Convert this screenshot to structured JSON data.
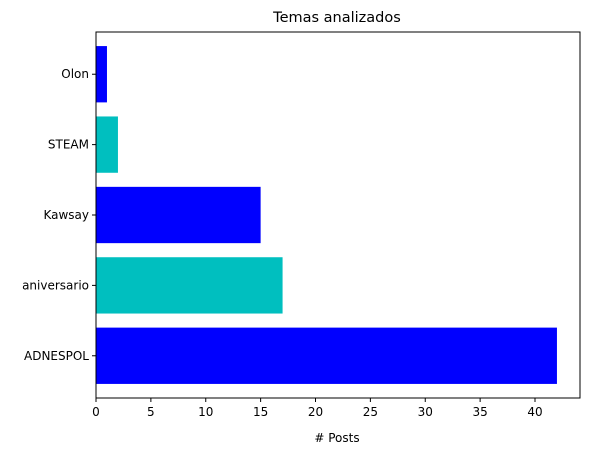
{
  "chart_data": {
    "type": "bar",
    "orientation": "horizontal",
    "title": "Temas analizados",
    "xlabel": "# Posts",
    "ylabel": "",
    "categories": [
      "ADNESPOL",
      "aniversario",
      "Kawsay",
      "STEAM",
      "Olon"
    ],
    "values": [
      42,
      17,
      15,
      2,
      1
    ],
    "bar_colors": [
      "#0000ff",
      "#00bfbf",
      "#0000ff",
      "#00bfbf",
      "#0000ff"
    ],
    "xlim": [
      0,
      44.1
    ],
    "xticks": [
      "0",
      "5",
      "10",
      "15",
      "20",
      "25",
      "30",
      "35",
      "40"
    ],
    "grid": false,
    "legend": "none"
  }
}
